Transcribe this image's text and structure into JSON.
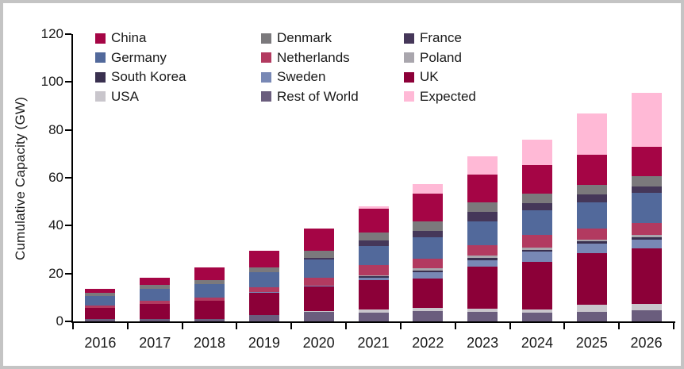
{
  "chart_data": {
    "type": "bar",
    "stacked": true,
    "title": "",
    "xlabel": "",
    "ylabel": "Cumulative Capacity (GW)",
    "ylim": [
      0,
      120
    ],
    "y_ticks": [
      0,
      20,
      40,
      60,
      80,
      100,
      120
    ],
    "grid": false,
    "legend_position": "top-left, 3 columns inside plot area",
    "categories": [
      "2016",
      "2017",
      "2018",
      "2019",
      "2020",
      "2021",
      "2022",
      "2023",
      "2024",
      "2025",
      "2026"
    ],
    "series": [
      {
        "name": "China",
        "color": "#A50545",
        "values": [
          1.6,
          3.2,
          5.4,
          7.0,
          9.5,
          9.8,
          11.6,
          11.6,
          12.0,
          12.7,
          12.2
        ]
      },
      {
        "name": "Denmark",
        "color": "#7B797C",
        "values": [
          1.3,
          1.4,
          1.4,
          1.8,
          2.9,
          3.2,
          3.9,
          3.9,
          4.2,
          4.1,
          4.4
        ]
      },
      {
        "name": "France",
        "color": "#453759",
        "values": [
          0,
          0,
          0,
          0,
          0.6,
          2.6,
          2.8,
          3.9,
          3.0,
          3.3,
          2.8
        ]
      },
      {
        "name": "Germany",
        "color": "#52699B",
        "values": [
          3.8,
          5.2,
          5.7,
          6.3,
          7.6,
          7.7,
          8.9,
          10.0,
          10.2,
          10.8,
          12.5
        ]
      },
      {
        "name": "Netherlands",
        "color": "#B23A60",
        "values": [
          1.0,
          1.1,
          1.3,
          2.2,
          3.2,
          4.6,
          3.9,
          4.4,
          5.3,
          4.6,
          5.0
        ]
      },
      {
        "name": "Poland",
        "color": "#A9A6AD",
        "values": [
          0,
          0,
          0,
          0,
          0,
          0.3,
          1.1,
          0.9,
          0.8,
          0.9,
          1.1
        ]
      },
      {
        "name": "South Korea",
        "color": "#39304F",
        "values": [
          0,
          0,
          0,
          0,
          0.1,
          0.4,
          0.6,
          1.1,
          0.9,
          0.9,
          0.8
        ]
      },
      {
        "name": "Sweden",
        "color": "#7888B5",
        "values": [
          0.2,
          0.2,
          0.2,
          0.2,
          0.3,
          1.0,
          2.5,
          2.4,
          4.2,
          4.1,
          3.7
        ]
      },
      {
        "name": "UK",
        "color": "#8C0038",
        "values": [
          4.6,
          6.2,
          7.4,
          9.3,
          10.4,
          12.4,
          12.4,
          17.7,
          19.9,
          21.4,
          23.2
        ]
      },
      {
        "name": "USA",
        "color": "#C9C6CC",
        "values": [
          0,
          0,
          0,
          0.1,
          0.4,
          1.2,
          1.3,
          1.3,
          1.3,
          3.0,
          2.7
        ]
      },
      {
        "name": "Rest of World",
        "color": "#6A5D7D",
        "values": [
          1.0,
          1.0,
          1.1,
          2.6,
          3.9,
          3.8,
          4.3,
          4.0,
          3.7,
          4.0,
          4.6
        ]
      },
      {
        "name": "Expected",
        "color": "#FFB9D6",
        "values": [
          0,
          0,
          0,
          0,
          0,
          1.1,
          4.1,
          7.7,
          10.5,
          17.2,
          22.5
        ]
      }
    ],
    "stack_order_bottom_to_top": [
      "Rest of World",
      "USA",
      "UK",
      "Sweden",
      "South Korea",
      "Poland",
      "Netherlands",
      "Germany",
      "France",
      "Denmark",
      "China",
      "Expected"
    ],
    "axis_color": "#000000",
    "text_color": "#1a1a1a"
  }
}
